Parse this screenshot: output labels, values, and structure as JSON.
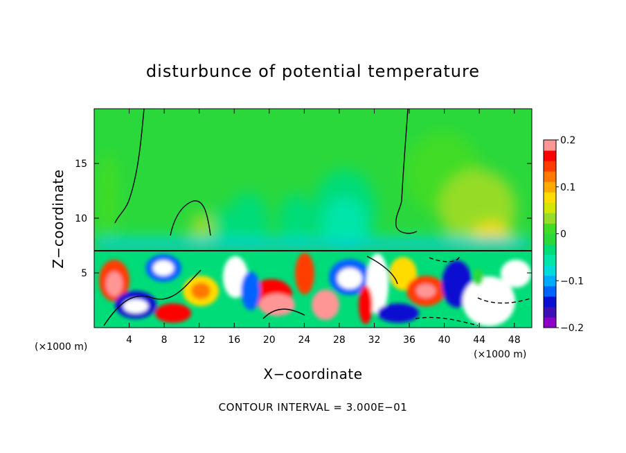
{
  "chart_data": {
    "type": "heatmap",
    "title": "disturbunce of potential temperature",
    "xlabel": "X−coordinate",
    "ylabel": "Z−coordinate",
    "x_unit": "(×1000 m)",
    "x_unit_right": "(×1000 m)",
    "contour_note": "CONTOUR INTERVAL = 3.000E−01",
    "xlim": [
      0,
      50
    ],
    "ylim": [
      0,
      20
    ],
    "x_ticks": [
      4,
      8,
      12,
      16,
      20,
      24,
      28,
      32,
      36,
      40,
      44,
      48
    ],
    "y_ticks": [
      5,
      10,
      15
    ],
    "colorbar": {
      "min": -0.2,
      "max": 0.2,
      "tick_values": [
        0.2,
        0.1,
        0,
        -0.1,
        -0.2
      ],
      "tick_labels": [
        "0.2",
        "0.1",
        "0",
        "−0.1",
        "−0.2"
      ],
      "colors": [
        "#8e00c8",
        "#3c10b4",
        "#0a10d2",
        "#0064ff",
        "#00aaff",
        "#00dcdc",
        "#00e6aa",
        "#00dc78",
        "#2ad83c",
        "#40dc28",
        "#96dc28",
        "#d2e600",
        "#ffdc00",
        "#ffaa00",
        "#ff7800",
        "#ff3c00",
        "#ff0000",
        "#ff9696"
      ]
    },
    "inversion_height": 7,
    "grid": false
  }
}
